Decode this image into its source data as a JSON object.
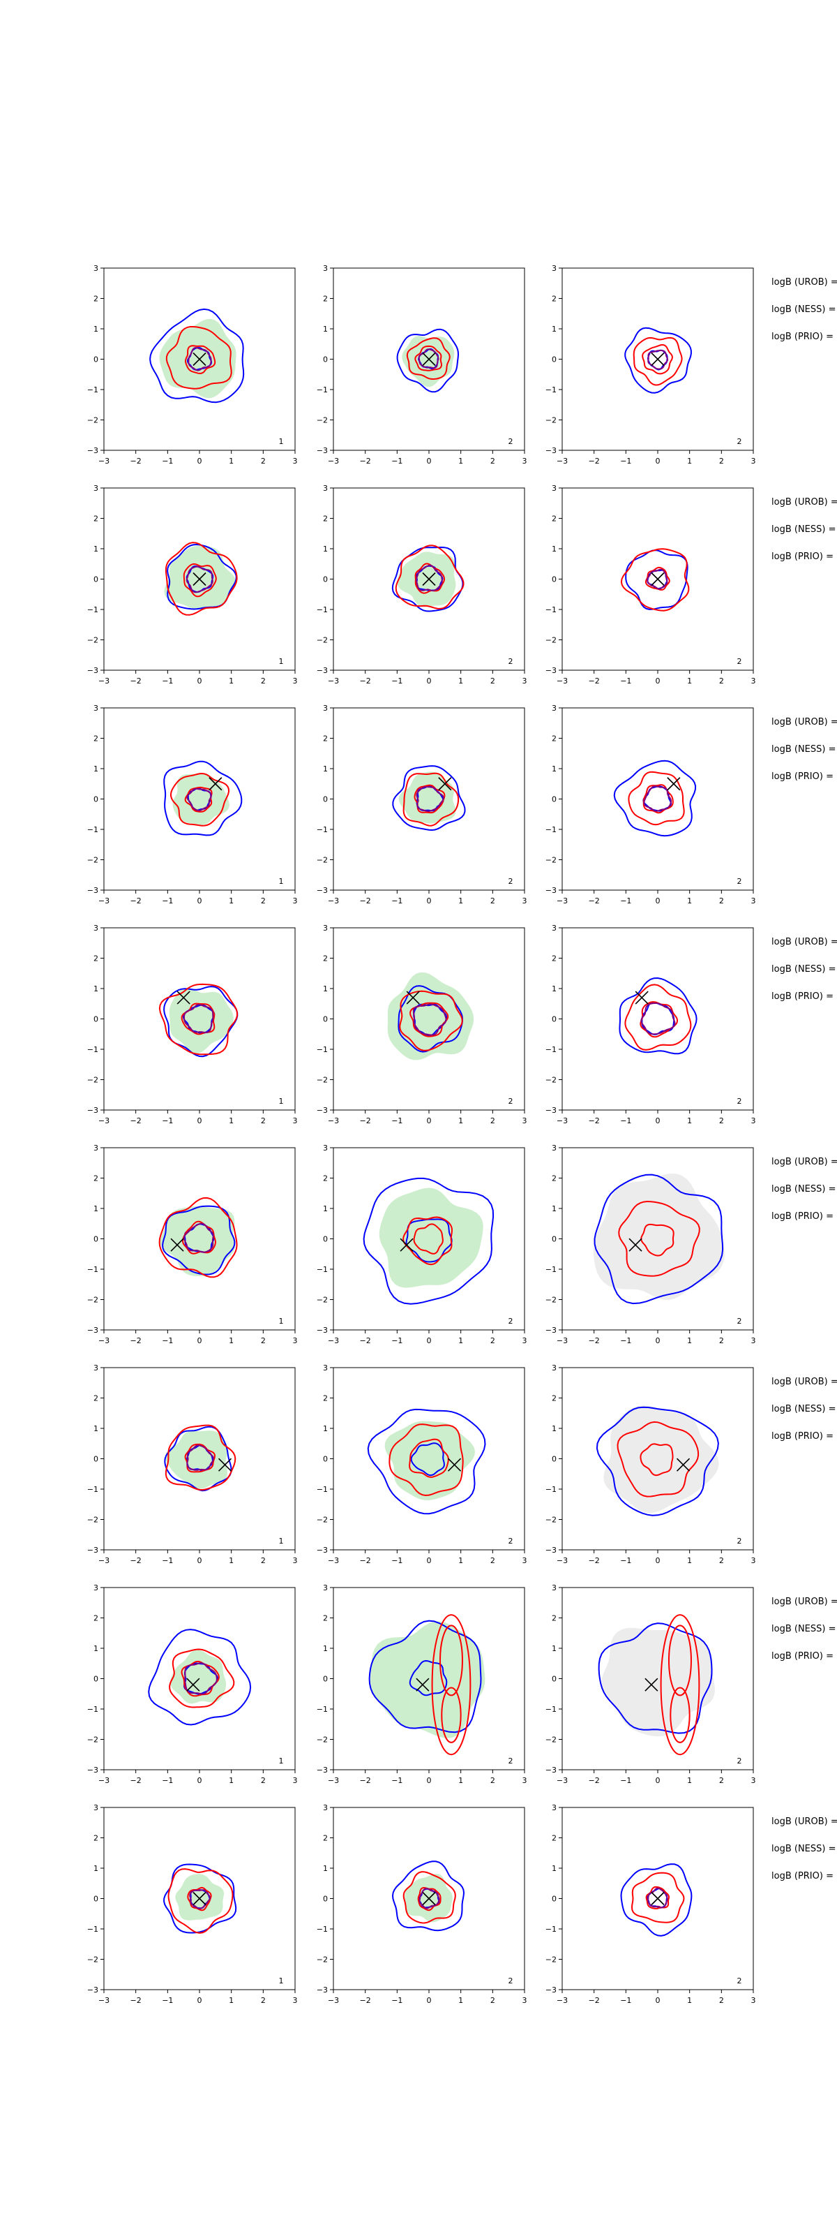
{
  "chart_data": {
    "type": "contour",
    "grid": {
      "rows": 8,
      "cols": 3
    },
    "xlim": [
      -3,
      3
    ],
    "ylim": [
      -3,
      3
    ],
    "ticks": [
      -3,
      -2,
      -1,
      0,
      1,
      2,
      3
    ],
    "panel_ids": [
      "1",
      "2",
      "2"
    ],
    "side_labels": [
      "logB (UROB) =",
      "logB (NESS) =",
      "logB (PRIO) ="
    ],
    "colors": {
      "fill_green": "#cdeecd",
      "fill_grey": "#ececec",
      "blue": "#0000ff",
      "red": "#ff0000",
      "purple": "#800080",
      "marker": "#000000"
    },
    "rows": [
      {
        "marker": [
          0.0,
          0.0
        ],
        "panels": [
          {
            "fill": "green",
            "fill_r": 1.2,
            "blue": [
              0.35,
              1.45
            ],
            "red": [
              0.45,
              1.0
            ],
            "purple": [
              0.35
            ]
          },
          {
            "fill": "green",
            "fill_r": 0.8,
            "blue": [
              0.3,
              0.95
            ],
            "red": [
              0.4,
              0.65
            ],
            "purple": [
              0.3
            ]
          },
          {
            "fill": "none",
            "fill_r": 0,
            "blue": [
              0.3,
              1.0
            ],
            "red": [
              0.45,
              0.75
            ],
            "purple": [
              0.3
            ]
          }
        ]
      },
      {
        "marker": [
          0.0,
          0.0
        ],
        "panels": [
          {
            "fill": "green",
            "fill_r": 1.05,
            "blue": [
              0.4,
              1.05
            ],
            "red": [
              0.5,
              1.1
            ],
            "purple": [
              0.4
            ]
          },
          {
            "fill": "green",
            "fill_r": 0.9,
            "blue": [
              0.4,
              1.05
            ],
            "red": [
              0.45,
              1.0
            ],
            "purple": [
              0.4
            ]
          },
          {
            "fill": "none",
            "fill_r": 0,
            "blue": [
              0.3,
              0.95
            ],
            "red": [
              0.35,
              1.0
            ],
            "purple": [
              0.3
            ]
          }
        ]
      },
      {
        "marker": [
          0.5,
          0.5
        ],
        "panels": [
          {
            "fill": "green",
            "fill_r": 0.85,
            "blue": [
              0.35,
              1.2
            ],
            "red": [
              0.4,
              0.85
            ],
            "purple": [
              0.35
            ]
          },
          {
            "fill": "green",
            "fill_r": 0.85,
            "blue": [
              0.4,
              1.05
            ],
            "red": [
              0.45,
              0.85
            ],
            "purple": [
              0.4
            ]
          },
          {
            "fill": "none",
            "fill_r": 0,
            "blue": [
              0.4,
              1.2
            ],
            "red": [
              0.45,
              0.85
            ],
            "purple": [
              0.4
            ]
          }
        ]
      },
      {
        "marker": [
          -0.5,
          0.7
        ],
        "panels": [
          {
            "fill": "green",
            "fill_r": 1.0,
            "blue": [
              0.45,
              1.1
            ],
            "red": [
              0.5,
              1.15
            ],
            "purple": [
              0.45
            ]
          },
          {
            "fill": "green",
            "fill_r": 1.35,
            "blue": [
              0.5,
              1.0
            ],
            "red": [
              0.55,
              0.95
            ],
            "purple": [
              0.5
            ]
          },
          {
            "fill": "none",
            "fill_r": 0,
            "blue": [
              0.5,
              1.2
            ],
            "red": [
              0.55,
              1.0
            ],
            "purple": [
              0.5
            ]
          }
        ]
      },
      {
        "marker": [
          -0.7,
          -0.2
        ],
        "panels": [
          {
            "fill": "green",
            "fill_r": 1.15,
            "blue": [
              0.45,
              1.1
            ],
            "red": [
              0.5,
              1.2
            ],
            "purple": [
              0.45
            ]
          },
          {
            "fill": "green",
            "fill_r": 1.6,
            "blue": [
              0.7,
              2.0
            ],
            "red": [
              0.45,
              0.75
            ],
            "purple": []
          },
          {
            "fill": "grey",
            "fill_r": 2.0,
            "blue": [
              2.0
            ],
            "red": [
              0.5,
              1.2
            ],
            "purple": []
          }
        ]
      },
      {
        "marker": [
          0.8,
          -0.2
        ],
        "panels": [
          {
            "fill": "green",
            "fill_r": 0.95,
            "blue": [
              0.4,
              1.0
            ],
            "red": [
              0.45,
              1.05
            ],
            "purple": [
              0.4
            ]
          },
          {
            "fill": "green",
            "fill_r": 1.3,
            "blue": [
              0.5,
              1.7
            ],
            "red": [
              0.6,
              1.15
            ],
            "purple": []
          },
          {
            "fill": "grey",
            "fill_r": 1.7,
            "blue": [
              1.75
            ],
            "red": [
              0.5,
              1.2
            ],
            "purple": []
          }
        ]
      },
      {
        "marker": [
          -0.2,
          -0.2
        ],
        "panels": [
          {
            "fill": "green",
            "fill_r": 0.85,
            "blue": [
              0.5,
              1.5
            ],
            "red": [
              0.55,
              0.95
            ],
            "purple": [
              0.5
            ]
          },
          {
            "fill": "green",
            "fill_r": 1.8,
            "blue": [
              0.55,
              1.75
            ],
            "red": [],
            "purple": [],
            "ellipses": [
              {
                "cx": 0.7,
                "cy": 0.6,
                "rx": 0.35,
                "ry": 1.15
              },
              {
                "cx": 0.7,
                "cy": -0.2,
                "rx": 0.6,
                "ry": 2.3
              },
              {
                "cx": 0.7,
                "cy": -1.2,
                "rx": 0.3,
                "ry": 0.9
              }
            ]
          },
          {
            "fill": "grey",
            "fill_r": 1.75,
            "blue": [
              1.75
            ],
            "red": [],
            "purple": [],
            "ellipses": [
              {
                "cx": 0.7,
                "cy": 0.6,
                "rx": 0.35,
                "ry": 1.15
              },
              {
                "cx": 0.7,
                "cy": -0.2,
                "rx": 0.6,
                "ry": 2.3
              },
              {
                "cx": 0.7,
                "cy": -1.2,
                "rx": 0.3,
                "ry": 0.9
              }
            ]
          }
        ]
      },
      {
        "marker": [
          0.0,
          0.0
        ],
        "panels": [
          {
            "fill": "green",
            "fill_r": 0.75,
            "blue": [
              0.3,
              1.1
            ],
            "red": [
              0.35,
              1.0
            ],
            "purple": [
              0.3
            ]
          },
          {
            "fill": "green",
            "fill_r": 0.75,
            "blue": [
              0.3,
              1.1
            ],
            "red": [
              0.35,
              0.8
            ],
            "purple": [
              0.3
            ]
          },
          {
            "fill": "none",
            "fill_r": 0,
            "blue": [
              0.3,
              1.1
            ],
            "red": [
              0.35,
              0.8
            ],
            "purple": [
              0.3
            ]
          }
        ]
      }
    ]
  }
}
